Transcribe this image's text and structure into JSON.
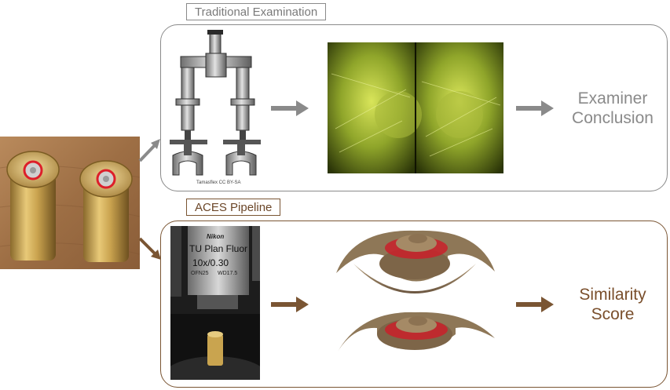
{
  "traditional": {
    "label": "Traditional Examination",
    "photo_credit": "Tamasflex CC BY-SA",
    "conclusion": "Examiner\nConclusion",
    "accent_color": "#8a8a8a"
  },
  "aces": {
    "label": "ACES Pipeline",
    "conclusion": "Similarity\nScore",
    "accent_color": "#7a5533",
    "microscope_text": {
      "brand": "Nikon",
      "objective": "TU Plan Fluor",
      "magnification": "10x/0.30",
      "spec_left": "OFN25",
      "spec_right": "WD17.5"
    }
  },
  "icons": [
    "cartridge-cases-photo",
    "comparison-microscope-image",
    "breech-face-comparison-image",
    "objective-lens-photo",
    "3d-surface-scan-image",
    "arrow-icon"
  ]
}
